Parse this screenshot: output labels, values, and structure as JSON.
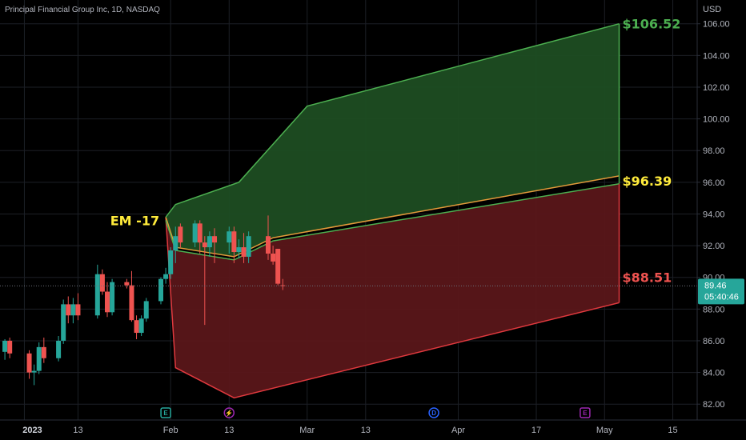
{
  "header": {
    "title": "Principal Financial Group Inc, 1D, NASDAQ",
    "currency": "USD"
  },
  "price_tag": {
    "price": "89.46",
    "countdown": "05:40:46"
  },
  "event_markers": [
    {
      "letter": "E",
      "date": "2023-01-31",
      "color": "#26a69a",
      "icon": "earnings-icon"
    },
    {
      "letter": "⚡",
      "date": "2023-02-13",
      "color": "#9c27b0",
      "icon": "split-icon"
    },
    {
      "letter": "D",
      "date": "2023-03-27",
      "color": "#2962ff",
      "icon": "dividend-icon"
    },
    {
      "letter": "E",
      "date": "2023-04-27",
      "color": "#9c27b0",
      "icon": "earnings-icon"
    }
  ],
  "colors": {
    "up": "#26a69a",
    "down": "#ef5350",
    "upper_fill": "#1e4d22",
    "lower_fill": "#5a1619",
    "upper_line": "#4caf50",
    "lower_line": "#e0393e",
    "mid_line": "#e39a3a",
    "label_green": "#4caf50",
    "label_yellow": "#ffeb3b",
    "label_red": "#ef5350",
    "grid": "#1c1f26"
  },
  "chart_data": {
    "type": "candlestick",
    "title": "Principal Financial Group Inc, 1D, NASDAQ",
    "ylabel": "USD",
    "ylim": [
      81.0,
      107.5
    ],
    "xlim": [
      "2022-12-28",
      "2023-05-20"
    ],
    "x_ticks": [
      {
        "label": "2023",
        "date": "2023-01-02"
      },
      {
        "label": "13",
        "date": "2023-01-13"
      },
      {
        "label": "Feb",
        "date": "2023-02-01"
      },
      {
        "label": "13",
        "date": "2023-02-13"
      },
      {
        "label": "Mar",
        "date": "2023-03-01"
      },
      {
        "label": "13",
        "date": "2023-03-13"
      },
      {
        "label": "Apr",
        "date": "2023-04-01"
      },
      {
        "label": "17",
        "date": "2023-04-17"
      },
      {
        "label": "May",
        "date": "2023-05-01"
      },
      {
        "label": "15",
        "date": "2023-05-15"
      }
    ],
    "y_ticks": [
      "82.00",
      "84.00",
      "86.00",
      "88.00",
      "90.00",
      "92.00",
      "94.00",
      "96.00",
      "98.00",
      "100.00",
      "102.00",
      "104.00",
      "106.00"
    ],
    "candles": [
      {
        "x": "2022-12-29",
        "o": 85.3,
        "h": 86.1,
        "l": 84.8,
        "c": 86.0
      },
      {
        "x": "2022-12-30",
        "o": 86.0,
        "h": 86.2,
        "l": 84.9,
        "c": 85.2
      },
      {
        "x": "2023-01-03",
        "o": 85.2,
        "h": 85.4,
        "l": 83.6,
        "c": 84.0
      },
      {
        "x": "2023-01-04",
        "o": 84.0,
        "h": 84.5,
        "l": 83.2,
        "c": 84.1
      },
      {
        "x": "2023-01-05",
        "o": 84.1,
        "h": 85.9,
        "l": 83.9,
        "c": 85.6
      },
      {
        "x": "2023-01-06",
        "o": 85.6,
        "h": 86.2,
        "l": 84.6,
        "c": 84.9
      },
      {
        "x": "2023-01-09",
        "o": 84.9,
        "h": 86.3,
        "l": 84.7,
        "c": 86.0
      },
      {
        "x": "2023-01-10",
        "o": 86.0,
        "h": 88.6,
        "l": 85.8,
        "c": 88.3
      },
      {
        "x": "2023-01-11",
        "o": 88.3,
        "h": 88.8,
        "l": 87.1,
        "c": 87.6
      },
      {
        "x": "2023-01-12",
        "o": 87.6,
        "h": 88.7,
        "l": 87.1,
        "c": 88.3
      },
      {
        "x": "2023-01-13",
        "o": 88.3,
        "h": 89.0,
        "l": 87.3,
        "c": 87.6
      },
      {
        "x": "2023-01-17",
        "o": 87.6,
        "h": 90.8,
        "l": 87.4,
        "c": 90.2
      },
      {
        "x": "2023-01-18",
        "o": 90.2,
        "h": 90.5,
        "l": 88.9,
        "c": 89.1
      },
      {
        "x": "2023-01-19",
        "o": 89.1,
        "h": 89.7,
        "l": 87.5,
        "c": 87.8
      },
      {
        "x": "2023-01-20",
        "o": 87.8,
        "h": 89.9,
        "l": 87.6,
        "c": 89.7
      },
      {
        "x": "2023-01-23",
        "o": 89.7,
        "h": 89.9,
        "l": 89.3,
        "c": 89.5
      },
      {
        "x": "2023-01-24",
        "o": 89.5,
        "h": 90.4,
        "l": 87.2,
        "c": 87.3
      },
      {
        "x": "2023-01-25",
        "o": 87.3,
        "h": 87.6,
        "l": 86.1,
        "c": 86.5
      },
      {
        "x": "2023-01-26",
        "o": 86.5,
        "h": 87.6,
        "l": 86.3,
        "c": 87.4
      },
      {
        "x": "2023-01-27",
        "o": 87.4,
        "h": 88.7,
        "l": 87.2,
        "c": 88.5
      },
      {
        "x": "2023-01-30",
        "o": 88.5,
        "h": 90.0,
        "l": 88.3,
        "c": 89.9
      },
      {
        "x": "2023-01-31",
        "o": 89.9,
        "h": 90.6,
        "l": 89.6,
        "c": 90.2
      },
      {
        "x": "2023-02-01",
        "o": 90.2,
        "h": 91.9,
        "l": 89.9,
        "c": 91.7
      },
      {
        "x": "2023-02-02",
        "o": 91.7,
        "h": 93.2,
        "l": 90.9,
        "c": 92.6
      },
      {
        "x": "2023-02-03",
        "o": 93.2,
        "h": 93.4,
        "l": 91.9,
        "c": 92.2
      },
      {
        "x": "2023-02-06",
        "o": 92.2,
        "h": 93.6,
        "l": 91.9,
        "c": 93.4
      },
      {
        "x": "2023-02-07",
        "o": 93.4,
        "h": 93.6,
        "l": 91.5,
        "c": 92.2
      },
      {
        "x": "2023-02-08",
        "o": 92.2,
        "h": 92.6,
        "l": 87.0,
        "c": 91.9
      },
      {
        "x": "2023-02-09",
        "o": 91.9,
        "h": 92.9,
        "l": 91.3,
        "c": 92.6
      },
      {
        "x": "2023-02-10",
        "o": 92.6,
        "h": 93.1,
        "l": 90.9,
        "c": 92.2
      },
      {
        "x": "2023-02-13",
        "o": 92.2,
        "h": 93.2,
        "l": 91.5,
        "c": 92.9
      },
      {
        "x": "2023-02-14",
        "o": 92.9,
        "h": 93.2,
        "l": 90.9,
        "c": 91.6
      },
      {
        "x": "2023-02-15",
        "o": 91.6,
        "h": 92.4,
        "l": 91.2,
        "c": 91.9
      },
      {
        "x": "2023-02-16",
        "o": 91.9,
        "h": 92.8,
        "l": 90.9,
        "c": 91.3
      },
      {
        "x": "2023-02-17",
        "o": 91.3,
        "h": 92.9,
        "l": 90.9,
        "c": 92.6
      },
      {
        "x": "2023-02-21",
        "o": 92.6,
        "h": 93.9,
        "l": 91.1,
        "c": 91.5
      },
      {
        "x": "2023-02-22",
        "o": 91.5,
        "h": 92.0,
        "l": 90.8,
        "c": 91.0
      },
      {
        "x": "2023-02-23",
        "o": 91.8,
        "h": 91.8,
        "l": 89.5,
        "c": 89.6
      },
      {
        "x": "2023-02-24",
        "o": 89.5,
        "h": 89.9,
        "l": 89.2,
        "c": 89.46
      }
    ],
    "projection": {
      "upper_bound": [
        {
          "x": "2023-01-31",
          "y": 93.8
        },
        {
          "x": "2023-02-02",
          "y": 94.6
        },
        {
          "x": "2023-02-15",
          "y": 96.0
        },
        {
          "x": "2023-03-01",
          "y": 100.8
        },
        {
          "x": "2023-05-04",
          "y": 106.0
        }
      ],
      "upper_mid": [
        {
          "x": "2023-01-31",
          "y": 93.8
        },
        {
          "x": "2023-02-02",
          "y": 91.9
        },
        {
          "x": "2023-02-14",
          "y": 91.3
        },
        {
          "x": "2023-02-22",
          "y": 92.5
        },
        {
          "x": "2023-05-04",
          "y": 96.4
        }
      ],
      "lower_mid": [
        {
          "x": "2023-01-31",
          "y": 93.6
        },
        {
          "x": "2023-02-02",
          "y": 91.7
        },
        {
          "x": "2023-02-14",
          "y": 91.1
        },
        {
          "x": "2023-02-22",
          "y": 92.3
        },
        {
          "x": "2023-05-04",
          "y": 95.9
        }
      ],
      "lower_bound": [
        {
          "x": "2023-01-31",
          "y": 93.8
        },
        {
          "x": "2023-02-02",
          "y": 84.3
        },
        {
          "x": "2023-02-14",
          "y": 82.4
        },
        {
          "x": "2023-05-04",
          "y": 88.4
        }
      ]
    },
    "annotations": [
      {
        "text": "EM -17",
        "x": "2023-01-31",
        "y": 93.6,
        "color": "#ffeb3b",
        "align": "end"
      },
      {
        "text": "$106.52",
        "x": "2023-05-04",
        "y": 106.0,
        "color": "#4caf50",
        "align": "start"
      },
      {
        "text": "$96.39",
        "x": "2023-05-04",
        "y": 96.1,
        "color": "#ffeb3b",
        "align": "start"
      },
      {
        "text": "$88.51",
        "x": "2023-05-04",
        "y": 90.0,
        "color": "#ef5350",
        "align": "start"
      }
    ],
    "current_price": 89.46
  }
}
